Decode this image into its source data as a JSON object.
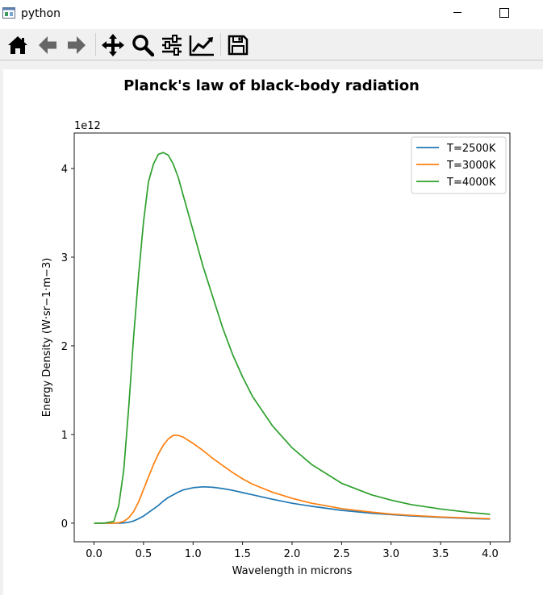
{
  "window": {
    "title": "python",
    "icons": [
      "app-icon",
      "minimize-icon",
      "maximize-icon"
    ]
  },
  "toolbar": {
    "tools": [
      {
        "name": "home-icon"
      },
      {
        "name": "back-icon"
      },
      {
        "name": "forward-icon"
      },
      {
        "name": "pan-icon"
      },
      {
        "name": "zoom-icon"
      },
      {
        "name": "subplots-icon"
      },
      {
        "name": "edit-axis-icon"
      },
      {
        "name": "save-icon"
      }
    ]
  },
  "chart_data": {
    "type": "line",
    "title": "Planck's law of black-body radiation",
    "xlabel": "Wavelength in microns",
    "ylabel": "Energy Density (W·sr−1·m−3)",
    "y_offset_label": "1e12",
    "xlim": [
      -0.2,
      4.2
    ],
    "ylim": [
      -0.21,
      4.4
    ],
    "x_ticks": [
      0.0,
      0.5,
      1.0,
      1.5,
      2.0,
      2.5,
      3.0,
      3.5,
      4.0
    ],
    "x_tick_labels": [
      "0.0",
      "0.5",
      "1.0",
      "1.5",
      "2.0",
      "2.5",
      "3.0",
      "3.5",
      "4.0"
    ],
    "y_ticks": [
      0,
      1,
      2,
      3,
      4
    ],
    "y_tick_labels": [
      "0",
      "1",
      "2",
      "3",
      "4"
    ],
    "grid": false,
    "legend": "upper right",
    "x": [
      0.0,
      0.1,
      0.2,
      0.25,
      0.3,
      0.35,
      0.4,
      0.45,
      0.5,
      0.55,
      0.6,
      0.65,
      0.7,
      0.75,
      0.8,
      0.85,
      0.9,
      1.0,
      1.1,
      1.2,
      1.3,
      1.4,
      1.5,
      1.6,
      1.8,
      2.0,
      2.2,
      2.5,
      2.8,
      3.0,
      3.2,
      3.5,
      3.8,
      4.0
    ],
    "series": [
      {
        "name": "T=2500K",
        "color": "#1f77b4",
        "values": [
          0.0,
          0.0,
          0.0,
          0.0,
          0.003,
          0.01,
          0.025,
          0.05,
          0.08,
          0.12,
          0.16,
          0.2,
          0.25,
          0.29,
          0.32,
          0.35,
          0.375,
          0.4,
          0.41,
          0.405,
          0.39,
          0.37,
          0.345,
          0.32,
          0.27,
          0.225,
          0.19,
          0.145,
          0.113,
          0.096,
          0.082,
          0.066,
          0.053,
          0.046
        ]
      },
      {
        "name": "T=3000K",
        "color": "#ff7f0e",
        "values": [
          0.0,
          0.0,
          0.0,
          0.005,
          0.02,
          0.06,
          0.13,
          0.24,
          0.38,
          0.52,
          0.66,
          0.78,
          0.88,
          0.95,
          0.99,
          0.99,
          0.97,
          0.9,
          0.82,
          0.73,
          0.65,
          0.57,
          0.5,
          0.44,
          0.35,
          0.28,
          0.225,
          0.165,
          0.125,
          0.103,
          0.088,
          0.07,
          0.057,
          0.05
        ]
      },
      {
        "name": "T=4000K",
        "color": "#2ca02c",
        "values": [
          0.0,
          0.0,
          0.02,
          0.2,
          0.6,
          1.3,
          2.1,
          2.8,
          3.4,
          3.85,
          4.05,
          4.16,
          4.18,
          4.15,
          4.05,
          3.9,
          3.7,
          3.3,
          2.9,
          2.55,
          2.2,
          1.9,
          1.65,
          1.43,
          1.1,
          0.85,
          0.66,
          0.45,
          0.32,
          0.26,
          0.21,
          0.16,
          0.12,
          0.1
        ]
      }
    ]
  }
}
